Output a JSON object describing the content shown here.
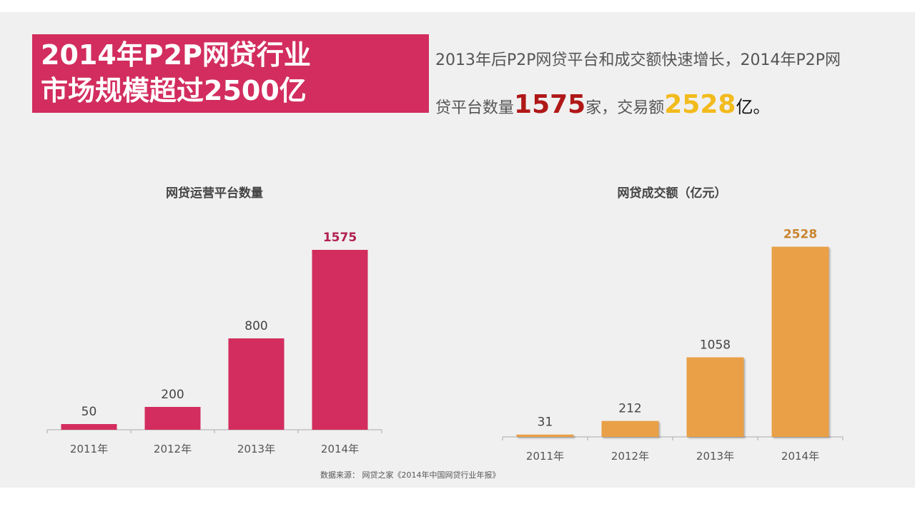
{
  "header": {
    "title_line1": "2014年P2P网贷行业",
    "title_line2": "市场规模超过2500亿"
  },
  "summary": {
    "line1": "2013年后P2P网贷平台和成交额快速增长，2014年P2P网",
    "line2_prefix": "贷平台数量",
    "platform_count": "1575",
    "line2_mid": "家，交易额",
    "volume": "2528",
    "line2_suffix": "亿。"
  },
  "colors": {
    "brand": "#d22d5e",
    "accent_orange": "#e9a047",
    "red_text": "#b01818",
    "yellow_text": "#f2bb1c"
  },
  "chart_data": [
    {
      "type": "bar",
      "title": "网贷运营平台数量",
      "categories": [
        "2011年",
        "2012年",
        "2013年",
        "2014年"
      ],
      "values": [
        50,
        200,
        800,
        1575
      ],
      "value_labels": [
        "50",
        "200",
        "800",
        "1575"
      ],
      "ylim": [
        0,
        1600
      ],
      "xlabel": "",
      "ylabel": ""
    },
    {
      "type": "bar",
      "title": "网贷成交额（亿元）",
      "categories": [
        "2011年",
        "2012年",
        "2013年",
        "2014年"
      ],
      "values": [
        31,
        212,
        1058,
        2528
      ],
      "value_labels": [
        "31",
        "212",
        "1058",
        "2528"
      ],
      "ylim": [
        0,
        2600
      ],
      "xlabel": "",
      "ylabel": ""
    }
  ],
  "source": "数据来源： 网贷之家《2014年中国网贷行业年报》"
}
